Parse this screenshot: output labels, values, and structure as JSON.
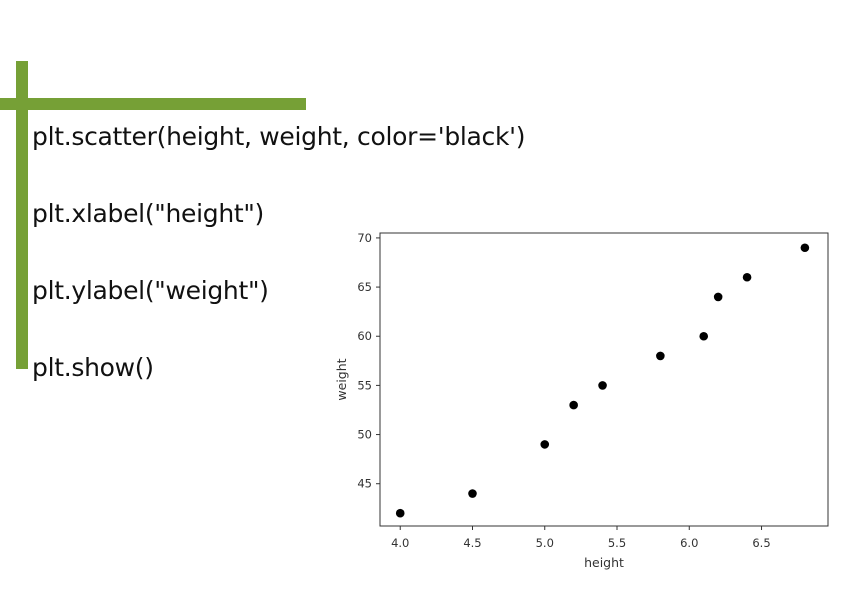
{
  "slide": {
    "accent_color": "#76a036",
    "code_lines": [
      "plt.scatter(height, weight, color='black')",
      "plt.xlabel(\"height\")",
      "plt.ylabel(\"weight\")",
      "plt.show()"
    ]
  },
  "chart_data": {
    "type": "scatter",
    "xlabel": "height",
    "ylabel": "weight",
    "marker_color": "#000000",
    "xlim": [
      3.86,
      6.96
    ],
    "ylim": [
      40.7,
      70.5
    ],
    "x_ticks": [
      4.0,
      4.5,
      5.0,
      5.5,
      6.0,
      6.5
    ],
    "x_tick_labels": [
      "4.0",
      "4.5",
      "5.0",
      "5.5",
      "6.0",
      "6.5"
    ],
    "y_ticks": [
      45,
      50,
      55,
      60,
      65,
      70
    ],
    "y_tick_labels": [
      "45",
      "50",
      "55",
      "60",
      "65",
      "70"
    ],
    "grid": false,
    "points": [
      {
        "x": 4.0,
        "y": 42
      },
      {
        "x": 4.5,
        "y": 44
      },
      {
        "x": 5.0,
        "y": 49
      },
      {
        "x": 5.2,
        "y": 53
      },
      {
        "x": 5.4,
        "y": 55
      },
      {
        "x": 5.8,
        "y": 58
      },
      {
        "x": 6.1,
        "y": 60
      },
      {
        "x": 6.2,
        "y": 64
      },
      {
        "x": 6.4,
        "y": 66
      },
      {
        "x": 6.8,
        "y": 69
      }
    ]
  }
}
